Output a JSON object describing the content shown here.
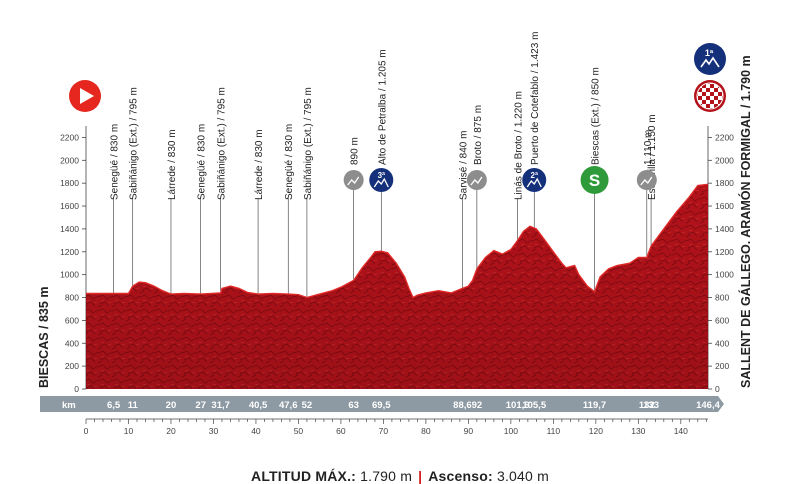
{
  "chart_data": {
    "type": "area",
    "start_label": "BIESCAS / 835 m",
    "finish_label": "SALLENT DE GÁLLEGO. ARAMÓN FORMIGAL / 1.790 m",
    "xlim": [
      0,
      146.4
    ],
    "ylim": [
      0,
      2300
    ],
    "yticks": [
      0,
      200,
      400,
      600,
      800,
      1000,
      1200,
      1400,
      1600,
      1800,
      2000,
      2200
    ],
    "xticks": [
      0,
      10,
      20,
      30,
      40,
      50,
      60,
      70,
      80,
      90,
      100,
      110,
      120,
      130,
      140
    ],
    "km_label": "km",
    "profile": [
      [
        0,
        835
      ],
      [
        5,
        835
      ],
      [
        10,
        835
      ],
      [
        11,
        900
      ],
      [
        12.5,
        935
      ],
      [
        14,
        930
      ],
      [
        16,
        900
      ],
      [
        18,
        860
      ],
      [
        20,
        830
      ],
      [
        23,
        835
      ],
      [
        27,
        830
      ],
      [
        31.7,
        840
      ],
      [
        32,
        880
      ],
      [
        34,
        900
      ],
      [
        36,
        880
      ],
      [
        38,
        845
      ],
      [
        40.5,
        830
      ],
      [
        44,
        835
      ],
      [
        47.6,
        830
      ],
      [
        50,
        825
      ],
      [
        52,
        800
      ],
      [
        55,
        830
      ],
      [
        58,
        860
      ],
      [
        60,
        890
      ],
      [
        63,
        950
      ],
      [
        65,
        1060
      ],
      [
        67,
        1150
      ],
      [
        68,
        1200
      ],
      [
        69.5,
        1205
      ],
      [
        71,
        1190
      ],
      [
        73,
        1100
      ],
      [
        75,
        980
      ],
      [
        76,
        880
      ],
      [
        77,
        800
      ],
      [
        78,
        820
      ],
      [
        80,
        840
      ],
      [
        83,
        860
      ],
      [
        86,
        840
      ],
      [
        88.6,
        880
      ],
      [
        90,
        900
      ],
      [
        91,
        950
      ],
      [
        92,
        1050
      ],
      [
        94,
        1150
      ],
      [
        96,
        1210
      ],
      [
        98,
        1180
      ],
      [
        100,
        1220
      ],
      [
        101.6,
        1300
      ],
      [
        103,
        1380
      ],
      [
        104.5,
        1423
      ],
      [
        106,
        1400
      ],
      [
        108,
        1300
      ],
      [
        110,
        1200
      ],
      [
        112,
        1100
      ],
      [
        113,
        1060
      ],
      [
        115,
        1080
      ],
      [
        116,
        1000
      ],
      [
        118,
        900
      ],
      [
        119.7,
        850
      ],
      [
        121,
        980
      ],
      [
        123,
        1050
      ],
      [
        125,
        1080
      ],
      [
        128,
        1100
      ],
      [
        130,
        1150
      ],
      [
        132,
        1150
      ],
      [
        133,
        1250
      ],
      [
        136,
        1400
      ],
      [
        139,
        1550
      ],
      [
        142,
        1680
      ],
      [
        144,
        1780
      ],
      [
        146.4,
        1790
      ]
    ],
    "waypoints": [
      {
        "km": "6,5",
        "x": 6.5,
        "label": "Senegüé / 830 m",
        "marker": ""
      },
      {
        "km": "11",
        "x": 11,
        "label": "Sabiñánigo (Ext.) / 795 m",
        "marker": ""
      },
      {
        "km": "20",
        "x": 20,
        "label": "Lárrede / 830 m",
        "marker": ""
      },
      {
        "km": "27",
        "x": 27,
        "label": "Senegüé / 830 m",
        "marker": ""
      },
      {
        "km": "31,7",
        "x": 31.7,
        "label": "Sabiñánigo (Ext.) / 795 m",
        "marker": ""
      },
      {
        "km": "40,5",
        "x": 40.5,
        "label": "Lárrede / 830 m",
        "marker": ""
      },
      {
        "km": "47,6",
        "x": 47.6,
        "label": "Senegüé / 830 m",
        "marker": ""
      },
      {
        "km": "52",
        "x": 52,
        "label": "Sabiñánigo (Ext.) / 795 m",
        "marker": ""
      },
      {
        "km": "63",
        "x": 63,
        "label": "890 m",
        "marker": "grey"
      },
      {
        "km": "69,5",
        "x": 69.5,
        "label": "Alto de Petralba / 1.205 m",
        "marker": "cat3",
        "marker_text": "3ª"
      },
      {
        "km": "88,6",
        "x": 88.6,
        "label": "Sarvisé / 840 m",
        "marker": ""
      },
      {
        "km": "92",
        "x": 92,
        "label": "Broto / 875 m",
        "marker": "grey"
      },
      {
        "km": "101,6",
        "x": 101.6,
        "label": "Linás de Broto / 1.220 m",
        "marker": ""
      },
      {
        "km": "105,5",
        "x": 105.5,
        "label": "Puerto de Cotefablo / 1.423 m",
        "marker": "cat2",
        "marker_text": "2ª"
      },
      {
        "km": "119,7",
        "x": 119.7,
        "label": "Biescas (Ext.) / 850 m",
        "marker": "sprint",
        "marker_text": "S"
      },
      {
        "km": "132",
        "x": 132,
        "label": "1.110 m",
        "marker": "grey"
      },
      {
        "km": "133",
        "x": 133,
        "label": "Escarrilla / 1.150 m",
        "marker": ""
      },
      {
        "km": "146,4",
        "x": 146.4,
        "label": "",
        "marker": ""
      }
    ],
    "finish_markers": {
      "category": "1ª"
    }
  },
  "footer": {
    "altitude_label": "ALTITUD MÁX.:",
    "altitude_value": "1.790 m",
    "ascent_label": "Ascenso:",
    "ascent_value": "3.040 m"
  },
  "colors": {
    "profile_fill": "#b3121a",
    "profile_top": "#e02a28",
    "km_band": "#8e9aa3",
    "cat_blue": "#14307a",
    "sprint_green": "#2f9a3a",
    "start_red": "#e5271f",
    "grey_marker": "#8d8d8d"
  }
}
